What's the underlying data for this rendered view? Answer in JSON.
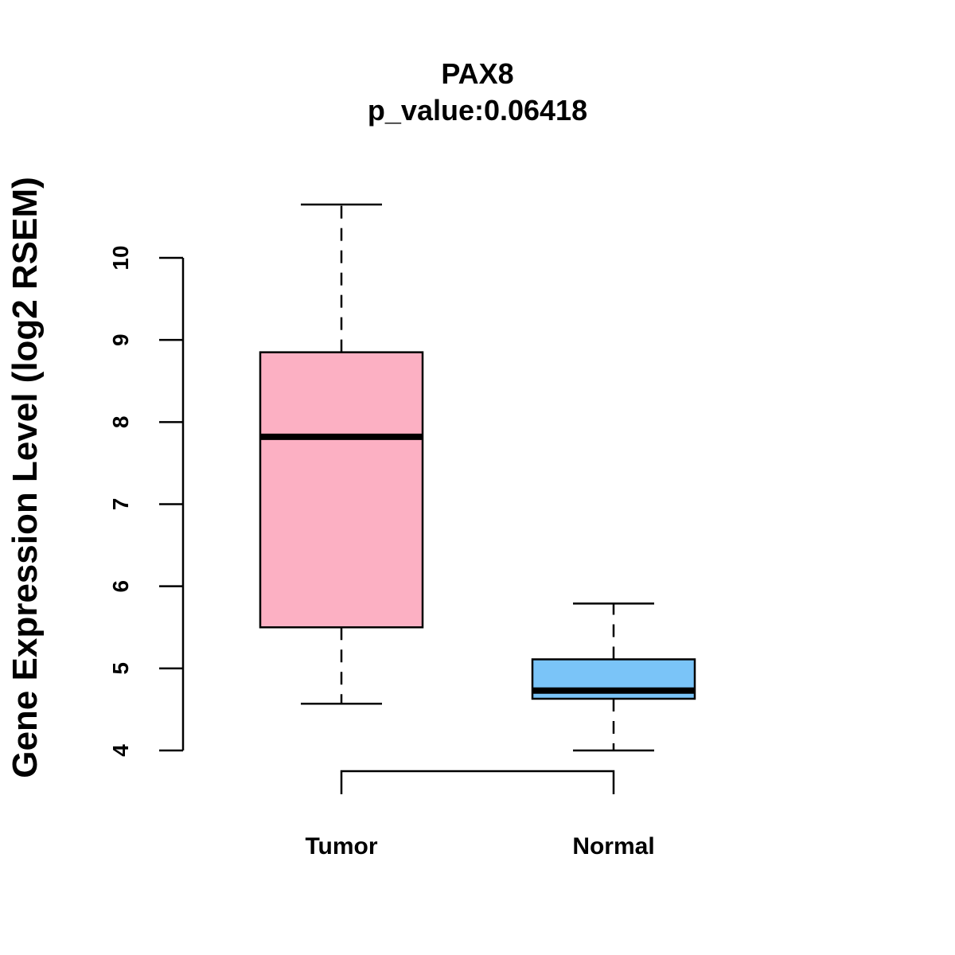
{
  "chart_data": {
    "type": "boxplot",
    "title": "PAX8",
    "subtitle": "p_value:0.06418",
    "xlabel": "",
    "ylabel": "Gene Expression Level (log2 RSEM)",
    "ylim": [
      4,
      10
    ],
    "yticks": [
      "4",
      "5",
      "6",
      "7",
      "8",
      "9",
      "10"
    ],
    "grid": false,
    "categories": [
      "Tumor",
      "Normal"
    ],
    "series": [
      {
        "name": "Tumor",
        "color": "#FCB0C3",
        "whisker_low": 4.57,
        "q1": 5.5,
        "median": 7.82,
        "q3": 8.85,
        "whisker_high": 10.65
      },
      {
        "name": "Normal",
        "color": "#7AC4F8",
        "whisker_low": 4.0,
        "q1": 4.63,
        "median": 4.73,
        "q3": 5.11,
        "whisker_high": 5.79
      }
    ],
    "comparison_bracket": [
      "Tumor",
      "Normal"
    ]
  }
}
